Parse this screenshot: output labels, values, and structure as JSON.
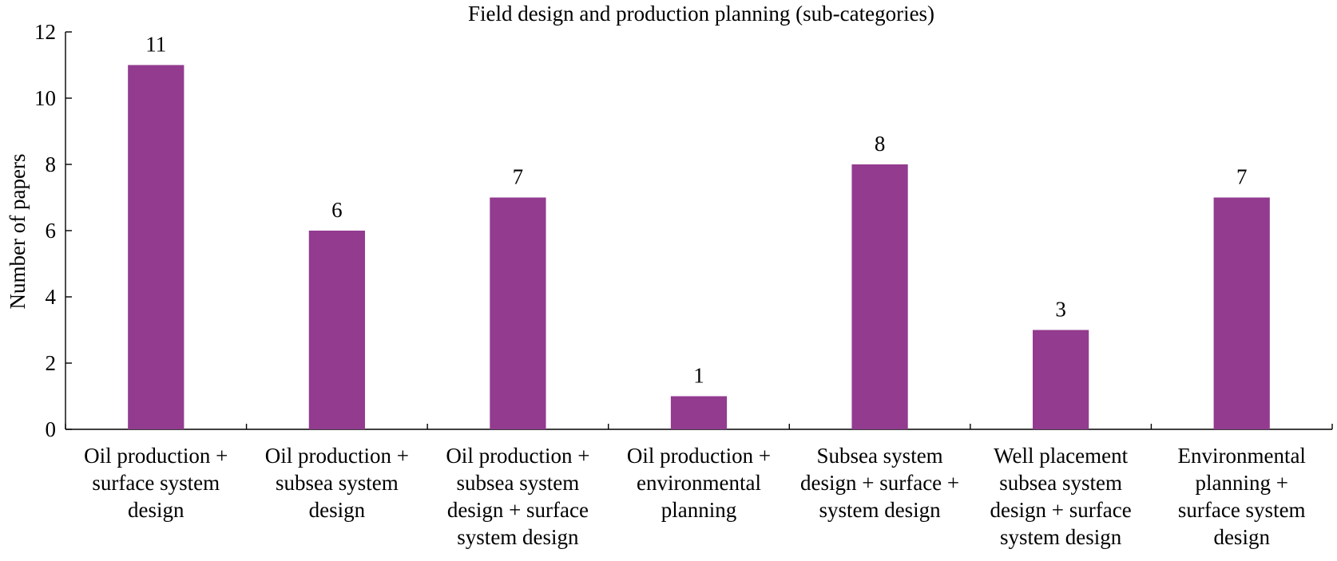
{
  "chart_data": {
    "type": "bar",
    "title": "Field design and production planning (sub-categories)",
    "xlabel": "",
    "ylabel": "Number of papers",
    "ylim": [
      0,
      12
    ],
    "yticks": [
      0,
      2,
      4,
      6,
      8,
      10,
      12
    ],
    "categories": [
      [
        "Oil production +",
        "surface system",
        "design"
      ],
      [
        "Oil production +",
        "subsea system",
        "design"
      ],
      [
        "Oil production +",
        "subsea system",
        "design + surface",
        "system design"
      ],
      [
        "Oil production +",
        "environmental",
        "planning"
      ],
      [
        "Subsea system",
        "design + surface +",
        "system design"
      ],
      [
        "Well placement",
        "subsea system",
        "design + surface",
        "system design"
      ],
      [
        "Environmental",
        "planning +",
        "surface system",
        "design"
      ]
    ],
    "values": [
      11,
      6,
      7,
      1,
      8,
      3,
      7
    ],
    "bar_color": "#923b8f",
    "grid": false,
    "legend": "none"
  }
}
